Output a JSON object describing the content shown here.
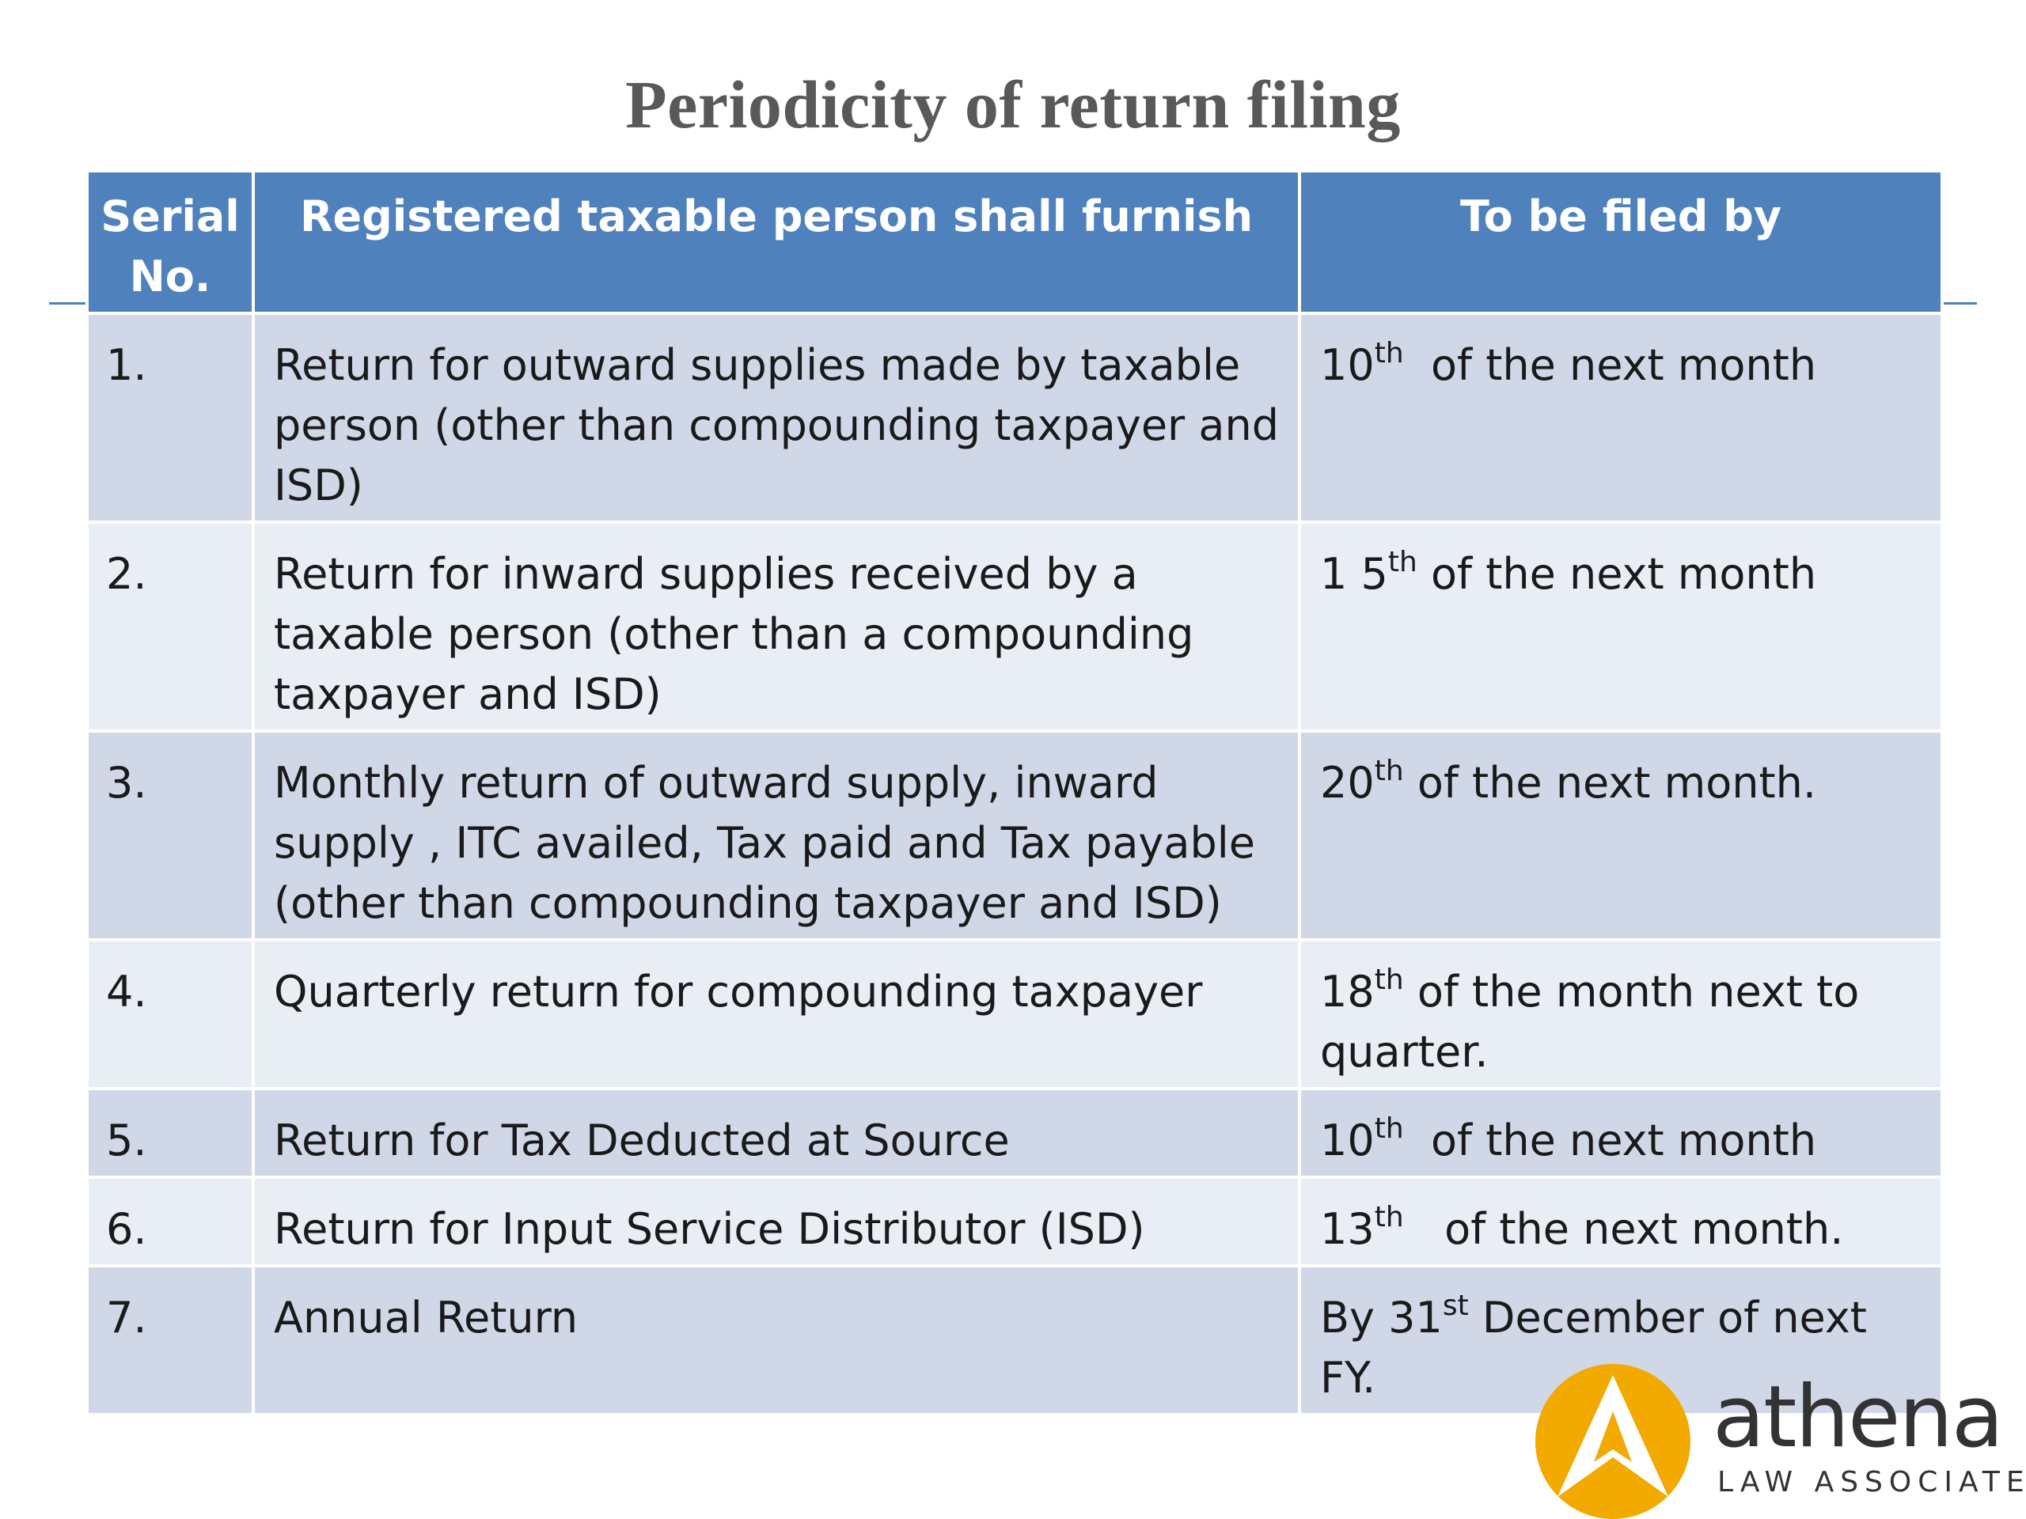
{
  "title": "Periodicity of return filing",
  "table": {
    "headers": {
      "serial_line1": "Serial",
      "serial_line2": "No.",
      "furnish": "Registered taxable person shall furnish",
      "filed_by": "To be filed by"
    },
    "rows": [
      {
        "serial": "1.",
        "description": "Return for outward supplies made by taxable person (other than compounding taxpayer and ISD)",
        "due_pre": "10",
        "due_sup": "th",
        "due_post": "  of the next month"
      },
      {
        "serial": "2.",
        "description": "Return for inward supplies received by a taxable person (other than a compounding taxpayer and ISD)",
        "due_pre": "1 5",
        "due_sup": "th",
        "due_post": " of the next month"
      },
      {
        "serial": "3.",
        "description": "Monthly return of outward supply, inward supply , ITC availed, Tax paid  and Tax payable (other than compounding taxpayer and ISD)",
        "due_pre": "20",
        "due_sup": "th",
        "due_post": " of the next month."
      },
      {
        "serial": "4.",
        "description": "Quarterly return for compounding taxpayer",
        "due_pre": "18",
        "due_sup": "th",
        "due_post": " of the month next to quarter."
      },
      {
        "serial": "5.",
        "description": "Return for Tax Deducted at Source",
        "due_pre": "10",
        "due_sup": "th",
        "due_post": "  of the next month"
      },
      {
        "serial": "6.",
        "description": "Return for Input Service Distributor (ISD)",
        "due_pre": "13",
        "due_sup": "th",
        "due_post": "   of the next month."
      },
      {
        "serial": "7.",
        "description": "Annual Return",
        "due_pre": "By 31",
        "due_sup": "st",
        "due_post": " December of next FY."
      }
    ]
  },
  "logo": {
    "wordmark": "athena",
    "subtitle": "LAW ASSOCIATES",
    "colors": {
      "mark": "#f2a900",
      "text": "#333333"
    }
  },
  "colors": {
    "header_bg": "#4f81bd",
    "row_odd": "#d0d8e8",
    "row_even": "#e9edf4",
    "title": "#595959"
  }
}
